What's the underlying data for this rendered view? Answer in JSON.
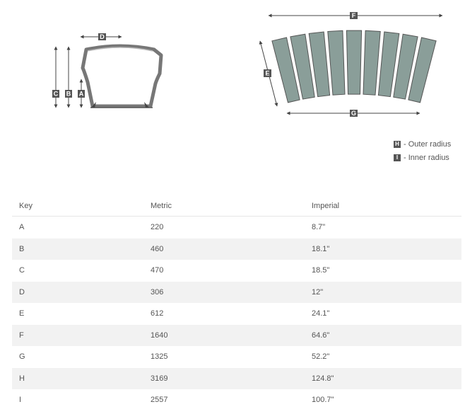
{
  "dimension_tags": {
    "a": "A",
    "b": "B",
    "c": "C",
    "d": "D",
    "e": "E",
    "f": "F",
    "g": "G",
    "h": "H",
    "i": "I"
  },
  "legend": [
    {
      "key": "H",
      "text": "- Outer radius"
    },
    {
      "key": "I",
      "text": "- Inner radius"
    }
  ],
  "table": {
    "headers": {
      "key": "Key",
      "metric": "Metric",
      "imperial": "Imperial"
    },
    "rows": [
      {
        "key": "A",
        "metric": "220",
        "imperial": "8.7\""
      },
      {
        "key": "B",
        "metric": "460",
        "imperial": "18.1\""
      },
      {
        "key": "C",
        "metric": "470",
        "imperial": "18.5\""
      },
      {
        "key": "D",
        "metric": "306",
        "imperial": "12\""
      },
      {
        "key": "E",
        "metric": "612",
        "imperial": "24.1\""
      },
      {
        "key": "F",
        "metric": "1640",
        "imperial": "64.6\""
      },
      {
        "key": "G",
        "metric": "1325",
        "imperial": "52.2\""
      },
      {
        "key": "H",
        "metric": "3169",
        "imperial": "124.8\""
      },
      {
        "key": "I",
        "metric": "2557",
        "imperial": "100.7\""
      }
    ]
  },
  "colors": {
    "slat_fill": "#8a9e99",
    "slat_stroke": "#555555",
    "tag_fill": "#555555",
    "line": "#444444"
  }
}
